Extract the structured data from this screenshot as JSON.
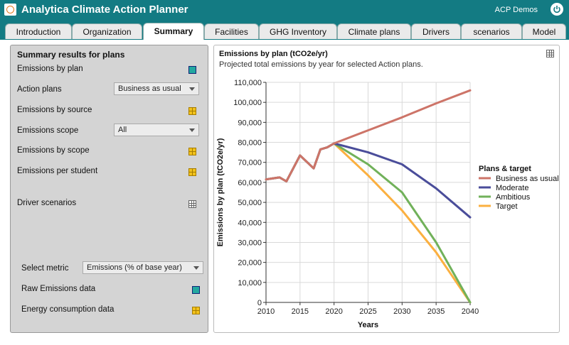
{
  "app": {
    "title": "Analytica Climate Action Planner",
    "user": "ACP Demos"
  },
  "tabs": [
    "Introduction",
    "Organization",
    "Summary",
    "Facilities",
    "GHG Inventory",
    "Climate plans",
    "Drivers",
    "scenarios",
    "Model"
  ],
  "active_tab": "Summary",
  "left_panel": {
    "title": "Summary results for plans",
    "emissions_by_plan": "Emissions by plan",
    "action_plans_label": "Action plans",
    "action_plans_value": "Business as usual",
    "emissions_by_source": "Emissions by source",
    "emissions_scope_label": "Emissions scope",
    "emissions_scope_value": "All",
    "emissions_by_scope": "Emissions by scope",
    "emissions_per_student": "Emissions per student",
    "driver_scenarios": "Driver scenarios",
    "select_metric_label": "Select metric",
    "select_metric_value": "Emissions (% of base year)",
    "raw_emissions": "Raw Emissions data",
    "energy_consumption": "Energy consumption data"
  },
  "chart_panel": {
    "title": "Emissions by plan  (tCO2e/yr)",
    "subtitle": "Projected total emissions by year for selected Action plans."
  },
  "colors": {
    "business": "#cd7468",
    "moderate": "#4a4d9a",
    "ambitious": "#71b15a",
    "target": "#fbb040",
    "titlebar": "#137b83"
  },
  "chart_data": {
    "type": "line",
    "title": "Emissions by plan  (tCO2e/yr)",
    "xlabel": "Years",
    "ylabel": "Emissions by plan (tCO2e/yr)",
    "xlim": [
      2010,
      2040
    ],
    "ylim": [
      0,
      110000
    ],
    "x_ticks": [
      2010,
      2015,
      2020,
      2025,
      2030,
      2035,
      2040
    ],
    "y_ticks": [
      0,
      10000,
      20000,
      30000,
      40000,
      50000,
      60000,
      70000,
      80000,
      90000,
      100000,
      110000
    ],
    "y_tick_labels": [
      "0",
      "10,000",
      "20,000",
      "30,000",
      "40,000",
      "50,000",
      "60,000",
      "70,000",
      "80,000",
      "90,000",
      "100,000",
      "110,000"
    ],
    "grid": true,
    "legend_title": "Plans & target",
    "legend_position": "right",
    "series": [
      {
        "name": "Business as usual",
        "color": "#cd7468",
        "x": [
          2010,
          2012,
          2013,
          2015,
          2017,
          2018,
          2019,
          2020,
          2025,
          2030,
          2035,
          2040
        ],
        "y": [
          61500,
          62500,
          60500,
          73500,
          67000,
          76500,
          77500,
          79500,
          86000,
          92500,
          99500,
          106000
        ]
      },
      {
        "name": "Moderate",
        "color": "#4a4d9a",
        "x": [
          2010,
          2012,
          2013,
          2015,
          2017,
          2018,
          2019,
          2020,
          2025,
          2030,
          2035,
          2040
        ],
        "y": [
          61500,
          62500,
          60500,
          73500,
          67000,
          76500,
          77500,
          79500,
          75000,
          69000,
          57000,
          42500
        ]
      },
      {
        "name": "Ambitious",
        "color": "#71b15a",
        "x": [
          2010,
          2012,
          2013,
          2015,
          2017,
          2018,
          2019,
          2020,
          2025,
          2030,
          2035,
          2040
        ],
        "y": [
          61500,
          62500,
          60500,
          73500,
          67000,
          76500,
          77500,
          79500,
          69000,
          55000,
          30000,
          0
        ]
      },
      {
        "name": "Target",
        "color": "#fbb040",
        "x": [
          2010,
          2012,
          2013,
          2015,
          2017,
          2018,
          2019,
          2020,
          2025,
          2030,
          2035,
          2040
        ],
        "y": [
          61500,
          62500,
          60500,
          73500,
          67000,
          76500,
          77500,
          79500,
          63500,
          46000,
          25000,
          0
        ]
      }
    ]
  }
}
